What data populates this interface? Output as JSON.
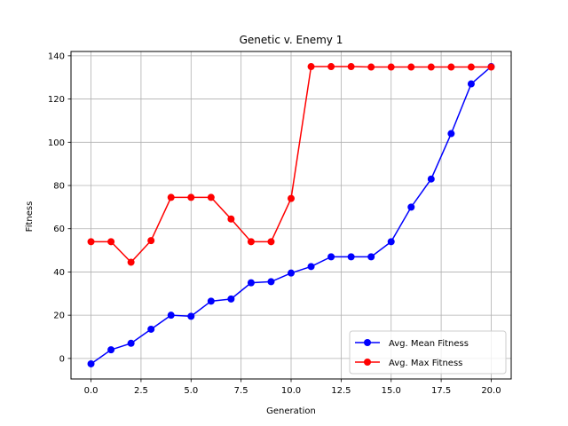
{
  "chart_data": {
    "type": "line",
    "title": "Genetic v. Enemy 1",
    "xlabel": "Generation",
    "ylabel": "Fitness",
    "xlim": [
      -1,
      21
    ],
    "ylim": [
      -9.5,
      142
    ],
    "xticks": [
      0.0,
      2.5,
      5.0,
      7.5,
      10.0,
      12.5,
      15.0,
      17.5,
      20.0
    ],
    "xtick_labels": [
      "0.0",
      "2.5",
      "5.0",
      "7.5",
      "10.0",
      "12.5",
      "15.0",
      "17.5",
      "20.0"
    ],
    "yticks": [
      0,
      20,
      40,
      60,
      80,
      100,
      120,
      140
    ],
    "ytick_labels": [
      "0",
      "20",
      "40",
      "60",
      "80",
      "100",
      "120",
      "140"
    ],
    "grid": true,
    "legend_position": "lower-right",
    "x": [
      0,
      1,
      2,
      3,
      4,
      5,
      6,
      7,
      8,
      9,
      10,
      11,
      12,
      13,
      14,
      15,
      16,
      17,
      18,
      19,
      20
    ],
    "series": [
      {
        "name": "Avg. Mean Fitness",
        "color": "#0000ff",
        "values": [
          -2.5,
          4,
          7,
          13.5,
          20,
          19.5,
          26.5,
          27.5,
          35,
          35.5,
          39.5,
          42.5,
          47,
          47,
          47,
          54,
          70,
          83,
          104,
          127,
          135
        ]
      },
      {
        "name": "Avg. Max Fitness",
        "color": "#ff0000",
        "values": [
          54,
          54,
          44.5,
          54.5,
          74.5,
          74.5,
          74.5,
          64.5,
          54,
          54,
          74,
          135,
          135,
          135,
          134.8,
          134.8,
          134.8,
          134.8,
          134.8,
          134.8,
          134.8
        ]
      }
    ]
  }
}
